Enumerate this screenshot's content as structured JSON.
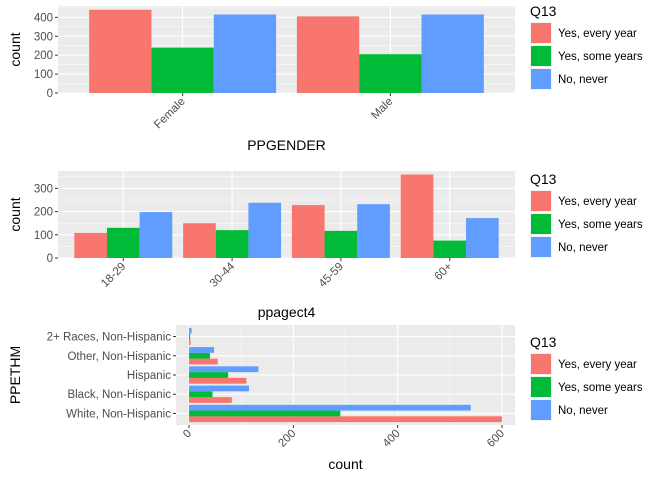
{
  "colors": {
    "panel_bg": "#ebebeb",
    "grid_major": "#ffffff",
    "tick": "#333333",
    "series": [
      "#f8766d",
      "#00ba38",
      "#619cff"
    ]
  },
  "legend": {
    "title": "Q13",
    "items": [
      "Yes, every year",
      "Yes, some years",
      "No, never"
    ]
  },
  "chart_data": [
    {
      "type": "bar",
      "orientation": "vertical",
      "xlabel": "PPGENDER",
      "ylabel": "count",
      "categories": [
        "Female",
        "Male"
      ],
      "ylim": [
        0,
        460
      ],
      "yticks": [
        0,
        100,
        200,
        300,
        400
      ],
      "series": [
        {
          "name": "Yes, every year",
          "values": [
            440,
            405
          ]
        },
        {
          "name": "Yes, some years",
          "values": [
            240,
            205
          ]
        },
        {
          "name": "No, never",
          "values": [
            415,
            415
          ]
        }
      ],
      "legend_position": "right"
    },
    {
      "type": "bar",
      "orientation": "vertical",
      "xlabel": "ppagect4",
      "ylabel": "count",
      "categories": [
        "18-29",
        "30-44",
        "45-59",
        "60+"
      ],
      "ylim": [
        0,
        375
      ],
      "yticks": [
        0,
        100,
        200,
        300
      ],
      "series": [
        {
          "name": "Yes, every year",
          "values": [
            108,
            150,
            228,
            360
          ]
        },
        {
          "name": "Yes, some years",
          "values": [
            130,
            120,
            117,
            75
          ]
        },
        {
          "name": "No, never",
          "values": [
            198,
            238,
            232,
            172
          ]
        }
      ],
      "legend_position": "right"
    },
    {
      "type": "bar",
      "orientation": "horizontal",
      "xlabel": "count",
      "ylabel": "PPETHM",
      "categories": [
        "White, Non-Hispanic",
        "Black, Non-Hispanic",
        "Hispanic",
        "Other, Non-Hispanic",
        "2+ Races, Non-Hispanic"
      ],
      "xlim": [
        -25,
        625
      ],
      "xticks": [
        0,
        200,
        400,
        600
      ],
      "series": [
        {
          "name": "Yes, every year",
          "values": [
            600,
            82,
            110,
            55,
            3
          ]
        },
        {
          "name": "Yes, some years",
          "values": [
            290,
            45,
            75,
            40,
            2
          ]
        },
        {
          "name": "No, never",
          "values": [
            540,
            115,
            133,
            48,
            5
          ]
        }
      ],
      "legend_position": "right"
    }
  ]
}
